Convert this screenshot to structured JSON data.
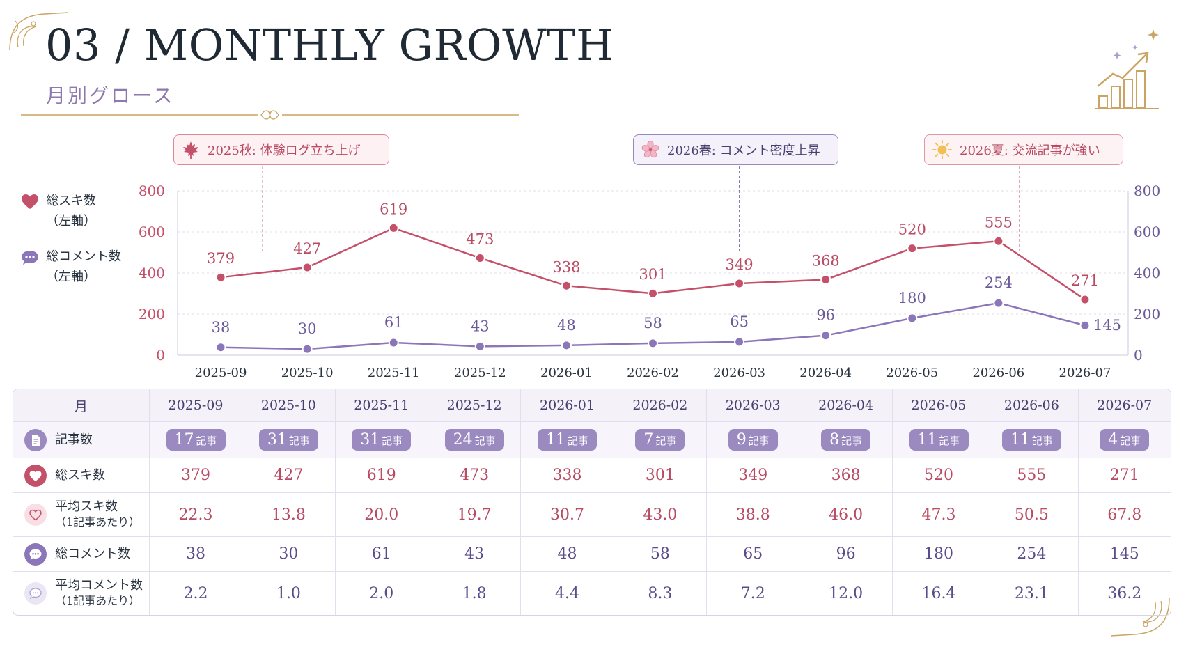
{
  "header": {
    "title": "03 / MONTHLY GROWTH",
    "subtitle": "月別グロース"
  },
  "legend": {
    "likes": {
      "line1": "総スキ数",
      "line2": "（左軸）",
      "color": "#c4506a"
    },
    "comments": {
      "line1": "総コメント数",
      "line2": "（左軸）",
      "color": "#8a76b8"
    }
  },
  "callouts": {
    "autumn": "2025秋: 体験ログ立ち上げ",
    "spring": "2026春: コメント密度上昇",
    "summer": "2026夏: 交流記事が強い"
  },
  "chart_data": {
    "type": "line",
    "x": [
      "2025-09",
      "2025-10",
      "2025-11",
      "2025-12",
      "2026-01",
      "2026-02",
      "2026-03",
      "2026-04",
      "2026-05",
      "2026-06",
      "2026-07"
    ],
    "series": [
      {
        "name": "総スキ数",
        "values": [
          379,
          427,
          619,
          473,
          338,
          301,
          349,
          368,
          520,
          555,
          271
        ],
        "color": "#c4506a"
      },
      {
        "name": "総コメント数",
        "values": [
          38,
          30,
          61,
          43,
          48,
          58,
          65,
          96,
          180,
          254,
          145
        ],
        "color": "#8a76b8"
      }
    ],
    "ylim": [
      0,
      800
    ],
    "yticks": [
      0,
      200,
      400,
      600,
      800
    ],
    "y2ticks": [
      0,
      200,
      400,
      600,
      800
    ],
    "grid": true,
    "legend": "left"
  },
  "table": {
    "month_header": "月",
    "rows": {
      "articles": {
        "label": "記事数",
        "unit": "記事",
        "values": [
          "17",
          "31",
          "31",
          "24",
          "11",
          "7",
          "9",
          "8",
          "11",
          "11",
          "4"
        ]
      },
      "likes": {
        "label": "総スキ数",
        "values": [
          "379",
          "427",
          "619",
          "473",
          "338",
          "301",
          "349",
          "368",
          "520",
          "555",
          "271"
        ]
      },
      "avg_likes": {
        "label": "平均スキ数",
        "sub": "（1記事あたり）",
        "values": [
          "22.3",
          "13.8",
          "20.0",
          "19.7",
          "30.7",
          "43.0",
          "38.8",
          "46.0",
          "47.3",
          "50.5",
          "67.8"
        ]
      },
      "comments": {
        "label": "総コメント数",
        "values": [
          "38",
          "30",
          "61",
          "43",
          "48",
          "58",
          "65",
          "96",
          "180",
          "254",
          "145"
        ]
      },
      "avg_comments": {
        "label": "平均コメント数",
        "sub": "（1記事あたり）",
        "values": [
          "2.2",
          "1.0",
          "2.0",
          "1.8",
          "4.4",
          "8.3",
          "7.2",
          "12.0",
          "16.4",
          "23.1",
          "36.2"
        ]
      }
    }
  }
}
